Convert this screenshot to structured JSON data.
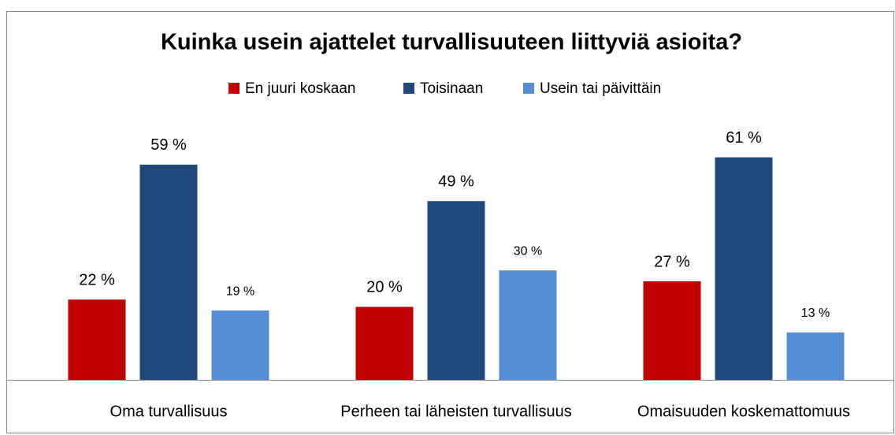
{
  "chart_data": {
    "type": "bar",
    "title": "Kuinka usein ajattelet turvallisuuteen liittyviä asioita?",
    "categories": [
      "Oma turvallisuus",
      "Perheen tai läheisten turvallisuus",
      "Omaisuuden koskemattomuus"
    ],
    "series": [
      {
        "name": "En juuri koskaan",
        "color": "#c00000",
        "values": [
          22,
          20,
          27
        ],
        "value_labels": [
          "22 %",
          "20 %",
          "27 %"
        ]
      },
      {
        "name": "Toisinaan",
        "color": "#1f497d",
        "values": [
          59,
          49,
          61
        ],
        "value_labels": [
          "59 %",
          "49 %",
          "61 %"
        ]
      },
      {
        "name": "Usein tai päivittäin",
        "color": "#558ed5",
        "values": [
          19,
          30,
          13
        ],
        "value_labels": [
          "19 %",
          "30 %",
          "13 %"
        ]
      }
    ],
    "ylim": [
      0,
      70
    ],
    "legend": "top"
  }
}
